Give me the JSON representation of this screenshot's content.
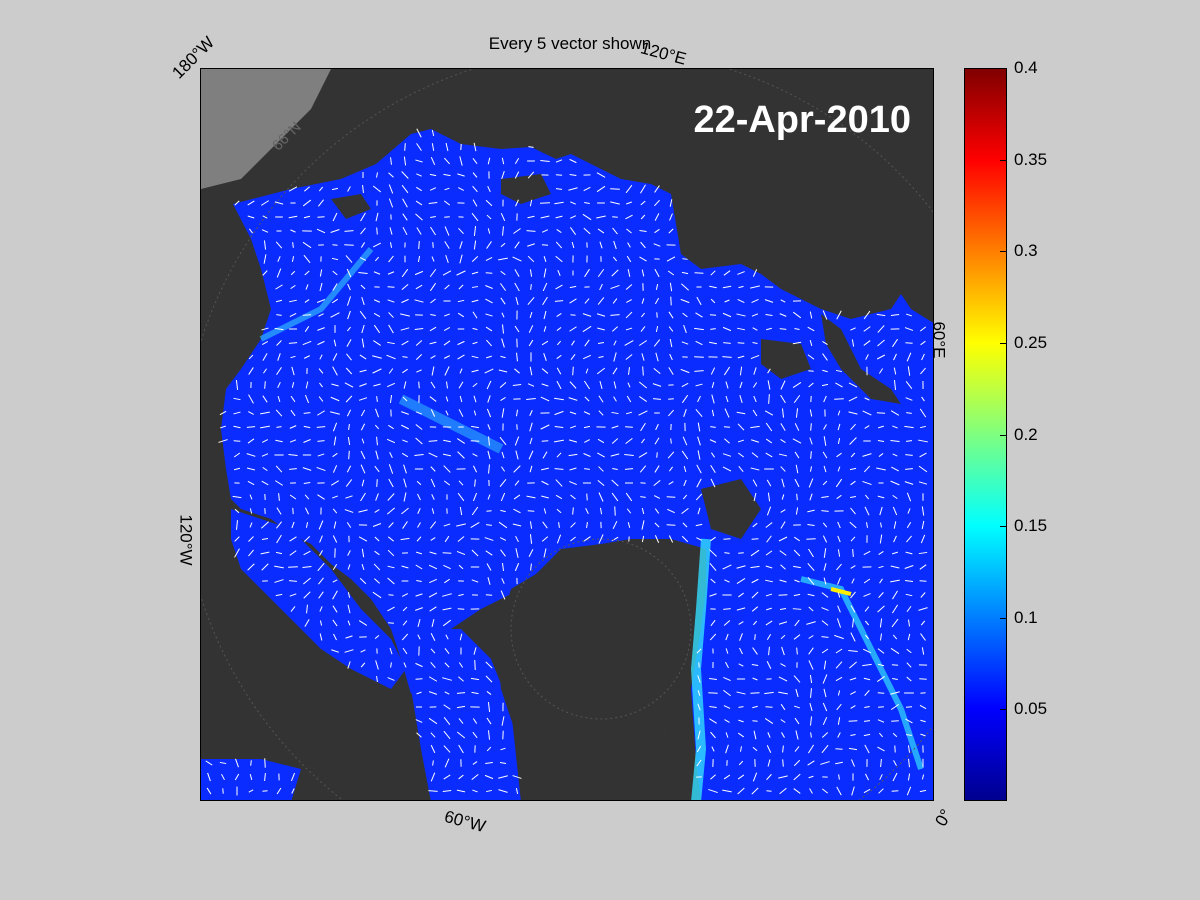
{
  "figure": {
    "title": "Every 5 vector shown",
    "date": "22-Apr-2010"
  },
  "map_labels": {
    "lon_180w": "180°W",
    "lon_120e": "120°E",
    "lon_60e": "60°E",
    "lon_120w": "120°W",
    "lon_60w": "60°W",
    "lon_0": "0°",
    "lat_66n": "66°N"
  },
  "colorbar": {
    "min": 0,
    "max": 0.4,
    "ticks": [
      "0.4",
      "0.35",
      "0.3",
      "0.25",
      "0.2",
      "0.15",
      "0.1",
      "0.05"
    ],
    "tick_values": [
      0.4,
      0.35,
      0.3,
      0.25,
      0.2,
      0.15,
      0.1,
      0.05
    ],
    "colormap": "jet"
  },
  "colors": {
    "background": "#cccccc",
    "land": "#333333",
    "ice_speed_low": "#0a2cff",
    "vectors": "#ffffff",
    "ocean_gray": "#7f7f7f"
  }
}
